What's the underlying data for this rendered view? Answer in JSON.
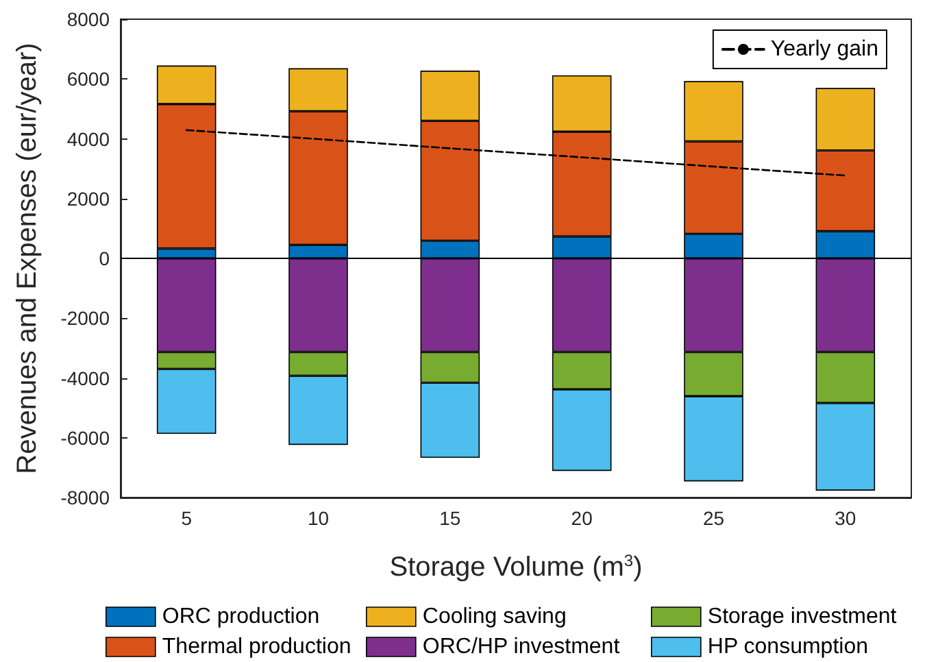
{
  "chart_data": {
    "type": "bar",
    "stacked": true,
    "xlabel": "Storage Volume (m$^{3}$)",
    "ylabel": "Revenues and Expenses (eur/year)",
    "categories": [
      "5",
      "10",
      "15",
      "20",
      "25",
      "30"
    ],
    "ylim": [
      -8000,
      8000
    ],
    "yticks": [
      -8000,
      -6000,
      -4000,
      -2000,
      0,
      2000,
      4000,
      6000,
      8000
    ],
    "grid": false,
    "legend": "bottom",
    "ref_lines": [
      {
        "axis": "y",
        "value": 0,
        "color": "#000000"
      }
    ],
    "series": [
      {
        "name": "ORC production",
        "color": "#0072bd",
        "values": [
          330,
          450,
          590,
          730,
          820,
          910
        ]
      },
      {
        "name": "Thermal production",
        "color": "#d95319",
        "values": [
          4830,
          4470,
          4010,
          3510,
          3090,
          2700
        ]
      },
      {
        "name": "Cooling saving",
        "color": "#edb120",
        "values": [
          1290,
          1440,
          1680,
          1880,
          2020,
          2090
        ]
      },
      {
        "name": "ORC/HP investment",
        "color": "#7e2f8e",
        "values": [
          -3130,
          -3130,
          -3130,
          -3130,
          -3130,
          -3130
        ]
      },
      {
        "name": "Storage investment",
        "color": "#77ac30",
        "values": [
          -570,
          -800,
          -1030,
          -1250,
          -1480,
          -1710
        ]
      },
      {
        "name": "HP consumption",
        "color": "#4dbeee",
        "values": [
          -2170,
          -2310,
          -2510,
          -2730,
          -2850,
          -2930
        ]
      },
      {
        "name": "Yearly gain",
        "type": "line",
        "color": "#000000",
        "line_style": "dashed",
        "marker": "none",
        "values": [
          4290,
          3990,
          3680,
          3380,
          3070,
          2770
        ]
      }
    ]
  }
}
